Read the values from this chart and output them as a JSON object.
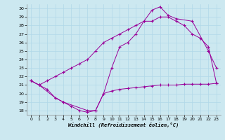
{
  "xlabel": "Windchill (Refroidissement éolien,°C)",
  "bg_color": "#cce8f0",
  "line_color": "#990099",
  "xlim": [
    -0.5,
    23.5
  ],
  "ylim": [
    17.5,
    30.5
  ],
  "yticks": [
    18,
    19,
    20,
    21,
    22,
    23,
    24,
    25,
    26,
    27,
    28,
    29,
    30
  ],
  "xticks": [
    0,
    1,
    2,
    3,
    4,
    5,
    6,
    7,
    8,
    9,
    10,
    11,
    12,
    13,
    14,
    15,
    16,
    17,
    18,
    19,
    20,
    21,
    22,
    23
  ],
  "line1_x": [
    0,
    1,
    2,
    3,
    4,
    5,
    6,
    7,
    8,
    9,
    10,
    11,
    12,
    13,
    14,
    15,
    16,
    17,
    18,
    19,
    20,
    21,
    22,
    23
  ],
  "line1_y": [
    21.5,
    21.0,
    20.5,
    19.5,
    19.0,
    18.5,
    18.0,
    17.8,
    18.0,
    20.0,
    20.3,
    20.5,
    20.6,
    20.7,
    20.8,
    20.9,
    21.0,
    21.0,
    21.0,
    21.1,
    21.1,
    21.1,
    21.1,
    21.2
  ],
  "line2_x": [
    0,
    1,
    2,
    3,
    4,
    5,
    6,
    7,
    8,
    9,
    10,
    11,
    12,
    13,
    14,
    15,
    16,
    17,
    18,
    19,
    20,
    21,
    22,
    23
  ],
  "line2_y": [
    21.5,
    21.0,
    21.5,
    22.0,
    22.5,
    23.0,
    23.5,
    24.0,
    25.0,
    26.0,
    26.5,
    27.0,
    27.5,
    28.0,
    28.5,
    28.5,
    29.0,
    29.0,
    28.5,
    28.0,
    27.0,
    26.5,
    25.5,
    21.2
  ],
  "line3_x": [
    0,
    1,
    3,
    4,
    7,
    8,
    9,
    10,
    11,
    12,
    13,
    14,
    15,
    16,
    17,
    18,
    20,
    22,
    23
  ],
  "line3_y": [
    21.5,
    21.0,
    19.5,
    19.0,
    18.0,
    18.0,
    20.0,
    23.0,
    25.5,
    26.0,
    27.0,
    28.5,
    29.8,
    30.2,
    29.2,
    28.8,
    28.5,
    25.0,
    23.0
  ]
}
